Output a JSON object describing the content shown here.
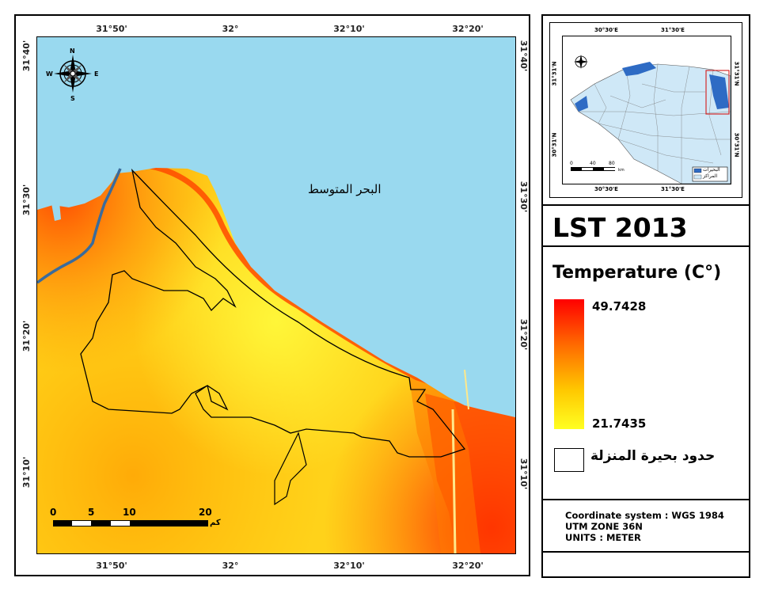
{
  "map": {
    "sea_label": "البحر المتوسط",
    "colors": {
      "sea": "#99d9ef",
      "land_base": "#ffd21a",
      "hot": "#ff3c00",
      "boundary": "#000000",
      "canal": "#3a6b9c"
    },
    "ticks_top": [
      "31°50'",
      "32°",
      "32°10'",
      "32°20'"
    ],
    "ticks_bottom": [
      "31°50'",
      "32°",
      "32°10'",
      "32°20'"
    ],
    "ticks_left": [
      "31°40'",
      "31°30'",
      "31°20'",
      "31°10'"
    ],
    "ticks_right": [
      "31°40'",
      "31°30'",
      "31°20'",
      "31°10'"
    ],
    "north_arrow": {
      "n": "N",
      "s": "S",
      "e": "E",
      "w": "W"
    },
    "scale_bar": {
      "labels": [
        "0",
        "5",
        "10",
        "20"
      ],
      "unit": "كم"
    }
  },
  "inset": {
    "ticks_top": [
      "30°30'E",
      "31°30'E"
    ],
    "ticks_bottom": [
      "30°30'E",
      "31°30'E"
    ],
    "ticks_left": [
      "31°31'N",
      "30°31'N"
    ],
    "ticks_right": [
      "31°31'N",
      "30°31'N"
    ],
    "scale_labels": [
      "0",
      "40",
      "80"
    ],
    "scale_unit": "km",
    "legend": [
      {
        "label": "البحيرات",
        "color": "#2e6bc4"
      },
      {
        "label": "المراكز",
        "color": "#cfe8f7"
      }
    ]
  },
  "title": "LST 2013",
  "legend": {
    "title": "Temperature (C°)",
    "max": "49.7428",
    "min": "21.7435",
    "boundary_label": "حدود بحيرة المنزلة"
  },
  "info": {
    "coordinate_system": "Coordinate system : WGS 1984",
    "zone": "UTM ZONE 36N",
    "units": "UNITS : METER"
  }
}
